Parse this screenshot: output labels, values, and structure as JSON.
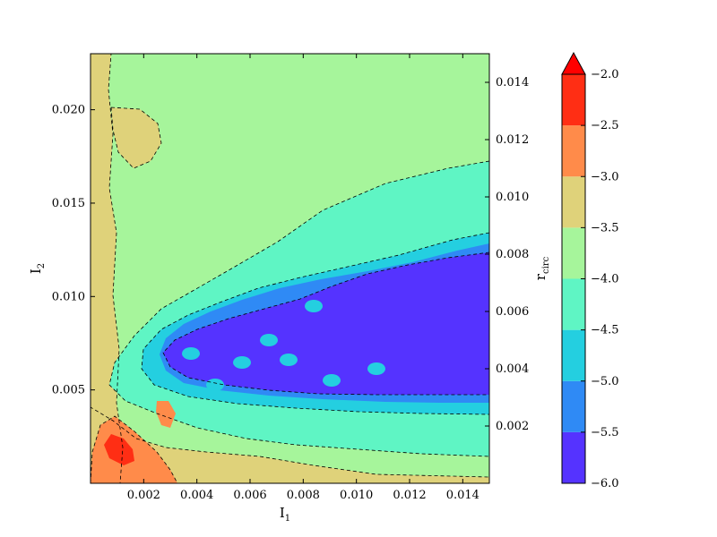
{
  "chart_data": {
    "type": "heatmap",
    "title": "",
    "xlabel": "I",
    "xlabel_sub": "1",
    "ylabel": "I",
    "ylabel_sub": "2",
    "right_ylabel": "r",
    "right_ylabel_sub": "circ",
    "xlim": [
      0.0,
      0.015
    ],
    "ylim": [
      0.0,
      0.023
    ],
    "right_ylim": [
      0.0,
      0.015
    ],
    "x_ticks": [
      "0.002",
      "0.004",
      "0.006",
      "0.008",
      "0.010",
      "0.012",
      "0.014"
    ],
    "x_tick_values": [
      0.002,
      0.004,
      0.006,
      0.008,
      0.01,
      0.012,
      0.014
    ],
    "y_ticks": [
      "0.005",
      "0.010",
      "0.015",
      "0.020"
    ],
    "y_tick_values": [
      0.005,
      0.01,
      0.015,
      0.02
    ],
    "right_y_ticks": [
      "0.002",
      "0.004",
      "0.006",
      "0.008",
      "0.010",
      "0.012",
      "0.014"
    ],
    "right_y_tick_values": [
      0.002,
      0.004,
      0.006,
      0.008,
      0.01,
      0.012,
      0.014
    ],
    "colorbar": {
      "min": -6.0,
      "max": -2.0,
      "extend": "max",
      "ticks": [
        "−2.0",
        "−2.5",
        "−3.0",
        "−3.5",
        "−4.0",
        "−4.5",
        "−5.0",
        "−5.5",
        "−6.0"
      ],
      "tick_values": [
        -2.0,
        -2.5,
        -3.0,
        -3.5,
        -4.0,
        -4.5,
        -5.0,
        -5.5,
        -6.0
      ],
      "levels": [
        {
          "range": [
            -6.0,
            -5.5
          ],
          "color": "#5533ff"
        },
        {
          "range": [
            -5.5,
            -5.0
          ],
          "color": "#2f8af5"
        },
        {
          "range": [
            -5.0,
            -4.5
          ],
          "color": "#24cfe0"
        },
        {
          "range": [
            -4.5,
            -4.0
          ],
          "color": "#5ff5c4"
        },
        {
          "range": [
            -4.0,
            -3.5
          ],
          "color": "#a6f59b"
        },
        {
          "range": [
            -3.5,
            -3.0
          ],
          "color": "#dfd27a"
        },
        {
          "range": [
            -3.0,
            -2.5
          ],
          "color": "#ff8b4a"
        },
        {
          "range": [
            -2.5,
            -2.0
          ],
          "color": "#ff2e14"
        }
      ],
      "extend_color": "#ff0000"
    },
    "regions": [
      {
        "name": "background",
        "level": -3.75
      },
      {
        "name": "left-band",
        "level": -3.25
      },
      {
        "name": "bottom-band",
        "level": -3.25
      },
      {
        "name": "upper-left-patch",
        "level": -3.25
      },
      {
        "name": "wedge-outer",
        "level": -4.25
      },
      {
        "name": "wedge-mid",
        "level": -4.75
      },
      {
        "name": "wedge-inner",
        "level": -5.25
      },
      {
        "name": "wedge-core",
        "level": -5.75
      },
      {
        "name": "corner-orange",
        "level": -2.75
      },
      {
        "name": "corner-red",
        "level": -2.25
      },
      {
        "name": "bottom-orange",
        "level": -2.75
      }
    ]
  }
}
